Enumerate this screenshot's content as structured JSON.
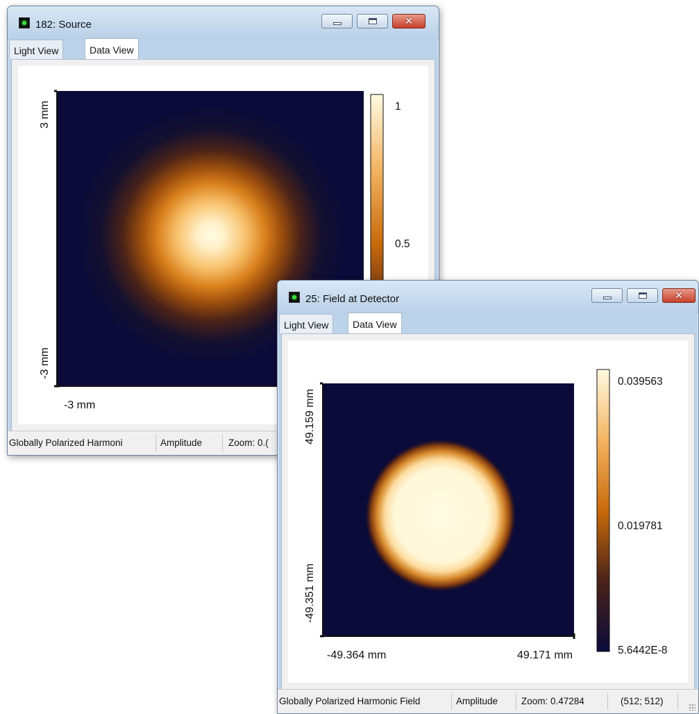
{
  "colors": {
    "background": "#0b0b3a",
    "cmap_low": "#0b0b3a",
    "cmap_mid": "#c86a0c",
    "cmap_high": "#fffbe2"
  },
  "source_window": {
    "title": "182: Source",
    "tabs": [
      "Light View",
      "Data View"
    ],
    "active_tab": "Data View",
    "y_axis_top": "3 mm",
    "y_axis_bottom": "-3 mm",
    "x_axis_left": "-3 mm",
    "colorbar_labels": {
      "top": "1",
      "mid": "0.5"
    },
    "status": {
      "field_type": "Globally Polarized Harmoni",
      "quantity": "Amplitude",
      "zoom": "Zoom: 0.("
    },
    "controls": {
      "minimize_icon": "minimize-icon",
      "maximize_icon": "maximize-icon",
      "close_icon": "close-icon"
    }
  },
  "detector_window": {
    "title": "25: Field at Detector",
    "tabs": [
      "Light View",
      "Data View"
    ],
    "active_tab": "Data View",
    "y_axis_top": "49.159 mm",
    "y_axis_bottom": "-49.351 mm",
    "x_axis_left": "-49.364 mm",
    "x_axis_right": "49.171 mm",
    "colorbar_labels": {
      "top": "0.039563",
      "mid": "0.019781",
      "bottom": "5.6442E-8"
    },
    "status": {
      "field_type": "Globally Polarized Harmonic Field",
      "quantity": "Amplitude",
      "zoom": "Zoom: 0.47284",
      "resolution": "(512; 512)"
    },
    "controls": {
      "minimize_icon": "minimize-icon",
      "maximize_icon": "maximize-icon",
      "close_icon": "close-icon"
    }
  }
}
